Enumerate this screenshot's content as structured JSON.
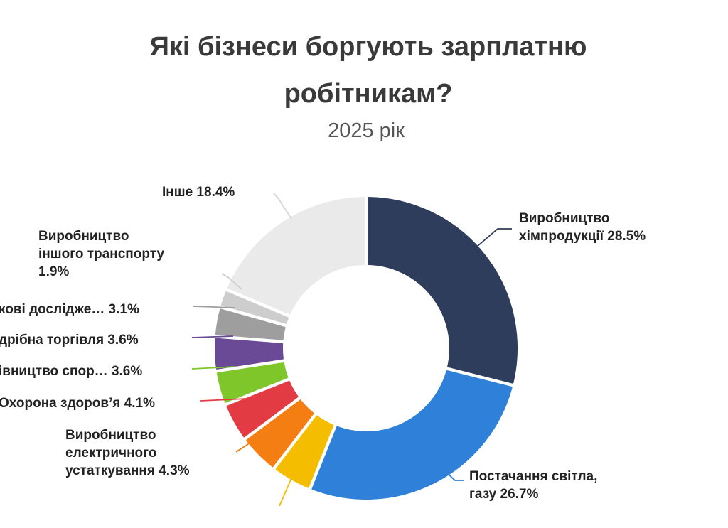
{
  "chart_data": {
    "type": "pie",
    "title": "Які бізнеси боргують зарплатню робітникам?",
    "title_lines": [
      "Які бізнеси боргують зарплатню",
      "робітникам?"
    ],
    "subtitle": "2025 рік",
    "donut": true,
    "start_angle_deg": 0,
    "direction": "clockwise",
    "slices": [
      {
        "label_lines": [
          "Виробництво",
          "хімпродукції 28.5%"
        ],
        "value": 28.5,
        "color": "#2f3d5c"
      },
      {
        "label_lines": [
          "Постачання світла,",
          "газу 26.7%"
        ],
        "value": 26.7,
        "color": "#2f80d8"
      },
      {
        "label_lines": [],
        "value": 4.3,
        "color": "#f5bd00"
      },
      {
        "label_lines": [
          "Виробництво",
          "електричного",
          "устаткування 4.3%"
        ],
        "value": 4.3,
        "color": "#f47e12"
      },
      {
        "label_lines": [
          "Охорона здоров’я 4.1%"
        ],
        "value": 4.1,
        "color": "#e23b44"
      },
      {
        "label_lines": [
          "івництво спор… 3.6%"
        ],
        "value": 3.6,
        "color": "#7ec62a"
      },
      {
        "label_lines": [
          "дрібна торгівля 3.6%"
        ],
        "value": 3.6,
        "color": "#6a4a96"
      },
      {
        "label_lines": [
          "кові дослідже… 3.1%"
        ],
        "value": 3.1,
        "color": "#9e9e9e"
      },
      {
        "label_lines": [
          "Виробництво",
          "іншого транспорту",
          "1.9%"
        ],
        "value": 1.9,
        "color": "#cdcdcd"
      },
      {
        "label_lines": [
          "Інше 18.4%"
        ],
        "value": 18.4,
        "color": "#eaeaea"
      }
    ]
  }
}
